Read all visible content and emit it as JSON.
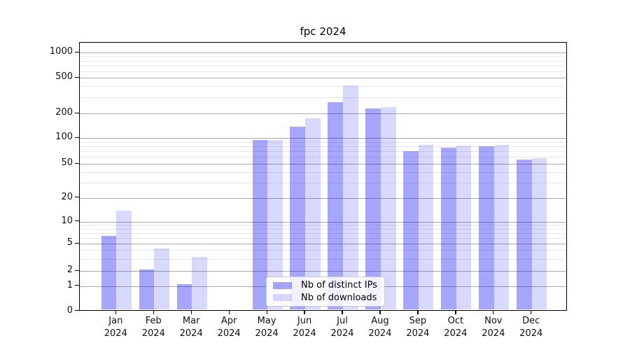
{
  "title": "fpc 2024",
  "legend": {
    "items": [
      {
        "label": "Nb of distinct IPs",
        "series": "ips"
      },
      {
        "label": "Nb of downloads",
        "series": "downloads"
      }
    ]
  },
  "colors": {
    "ips": "rgba(0,0,255,0.35)",
    "downloads": "rgba(0,0,255,0.15)",
    "grid_major": "#aaaaaa",
    "grid_minor": "#e9e9e9",
    "axis": "#000000",
    "background": "#ffffff"
  },
  "chart_data": {
    "type": "bar",
    "title": "fpc 2024",
    "categories": [
      "Jan 2024",
      "Feb 2024",
      "Mar 2024",
      "Apr 2024",
      "May 2024",
      "Jun 2024",
      "Jul 2024",
      "Aug 2024",
      "Sep 2024",
      "Oct 2024",
      "Nov 2024",
      "Dec 2024"
    ],
    "series": [
      {
        "name": "Nb of distinct IPs",
        "values": [
          6,
          2,
          1,
          0,
          90,
          130,
          255,
          215,
          67,
          74,
          77,
          54
        ]
      },
      {
        "name": "Nb of downloads",
        "values": [
          13,
          4,
          3,
          0,
          90,
          165,
          390,
          225,
          80,
          78,
          80,
          56
        ]
      }
    ],
    "yscale": "symlog",
    "ylim": [
      0,
      1000
    ],
    "y_major_ticks": [
      0,
      1,
      2,
      5,
      10,
      20,
      50,
      100,
      200,
      500,
      1000
    ],
    "y_minor_ticks": [
      3,
      4,
      6,
      7,
      8,
      9,
      30,
      40,
      60,
      70,
      80,
      90,
      300,
      400,
      600,
      700,
      800,
      900
    ],
    "grid": "both",
    "legend_position": "lower center inside"
  }
}
